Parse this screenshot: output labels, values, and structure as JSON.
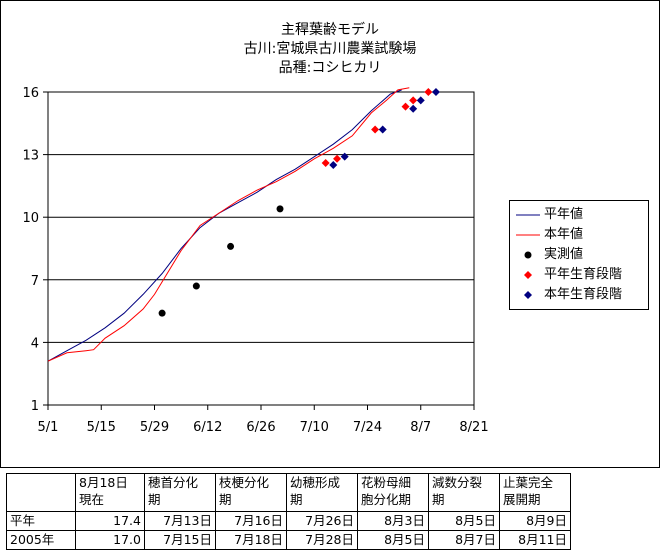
{
  "chart_data": {
    "type": "line",
    "title_lines": [
      "主稈葉齢モデル",
      "古川:宮城県古川農業試験場",
      "品種:コシヒカリ"
    ],
    "x_ticks": [
      "5/1",
      "5/15",
      "5/29",
      "6/12",
      "6/26",
      "7/10",
      "7/24",
      "8/7",
      "8/21"
    ],
    "y_ticks": [
      1,
      4,
      7,
      10,
      13,
      16
    ],
    "xlim": [
      0,
      112
    ],
    "ylim": [
      1,
      16
    ],
    "grid": "horizontal",
    "legend_position": "right",
    "series": [
      {
        "name": "平年値",
        "kind": "line",
        "color": "#000080",
        "points": [
          [
            0,
            3.1
          ],
          [
            5,
            3.6
          ],
          [
            10,
            4.1
          ],
          [
            15,
            4.7
          ],
          [
            20,
            5.4
          ],
          [
            25,
            6.3
          ],
          [
            30,
            7.3
          ],
          [
            35,
            8.5
          ],
          [
            40,
            9.5
          ],
          [
            45,
            10.2
          ],
          [
            50,
            10.7
          ],
          [
            55,
            11.2
          ],
          [
            60,
            11.8
          ],
          [
            65,
            12.3
          ],
          [
            70,
            12.9
          ],
          [
            75,
            13.5
          ],
          [
            80,
            14.2
          ],
          [
            85,
            15.1
          ],
          [
            90,
            15.9
          ],
          [
            93,
            16.1
          ]
        ]
      },
      {
        "name": "本年値",
        "kind": "line",
        "color": "#ff0000",
        "points": [
          [
            0,
            3.1
          ],
          [
            5,
            3.5
          ],
          [
            10,
            3.6
          ],
          [
            12,
            3.65
          ],
          [
            15,
            4.2
          ],
          [
            20,
            4.8
          ],
          [
            25,
            5.6
          ],
          [
            28,
            6.3
          ],
          [
            30,
            6.9
          ],
          [
            35,
            8.4
          ],
          [
            40,
            9.6
          ],
          [
            45,
            10.2
          ],
          [
            50,
            10.8
          ],
          [
            55,
            11.3
          ],
          [
            60,
            11.7
          ],
          [
            65,
            12.2
          ],
          [
            70,
            12.8
          ],
          [
            75,
            13.3
          ],
          [
            80,
            13.9
          ],
          [
            85,
            15.0
          ],
          [
            89,
            15.6
          ],
          [
            92,
            16.1
          ],
          [
            95,
            16.2
          ]
        ]
      },
      {
        "name": "実測値",
        "kind": "points",
        "color": "#000000",
        "marker": "circle",
        "points": [
          [
            30,
            5.4
          ],
          [
            39,
            6.7
          ],
          [
            48,
            8.6
          ],
          [
            61,
            10.4
          ]
        ]
      },
      {
        "name": "平年生育段階",
        "kind": "points",
        "color": "#ff0000",
        "marker": "diamond",
        "points": [
          [
            73,
            12.6
          ],
          [
            76,
            12.8
          ],
          [
            86,
            14.2
          ],
          [
            94,
            15.3
          ],
          [
            96,
            15.6
          ],
          [
            100,
            16.0
          ]
        ]
      },
      {
        "name": "本年生育段階",
        "kind": "points",
        "color": "#000080",
        "marker": "diamond",
        "points": [
          [
            75,
            12.5
          ],
          [
            78,
            12.9
          ],
          [
            88,
            14.2
          ],
          [
            96,
            15.2
          ],
          [
            98,
            15.6
          ],
          [
            102,
            16.0
          ]
        ]
      }
    ]
  },
  "table": {
    "headers": [
      "",
      "8月18日\n現在",
      "穂首分化\n期",
      "枝梗分化\n期",
      "幼穂形成\n期",
      "花粉母細\n胞分化期",
      "減数分裂\n期",
      "止葉完全\n展開期"
    ],
    "rows": [
      [
        "平年",
        "17.4",
        "7月13日",
        "7月16日",
        "7月26日",
        "8月3日",
        "8月5日",
        "8月9日"
      ],
      [
        "2005年",
        "17.0",
        "7月15日",
        "7月18日",
        "7月28日",
        "8月5日",
        "8月7日",
        "8月11日"
      ]
    ]
  }
}
